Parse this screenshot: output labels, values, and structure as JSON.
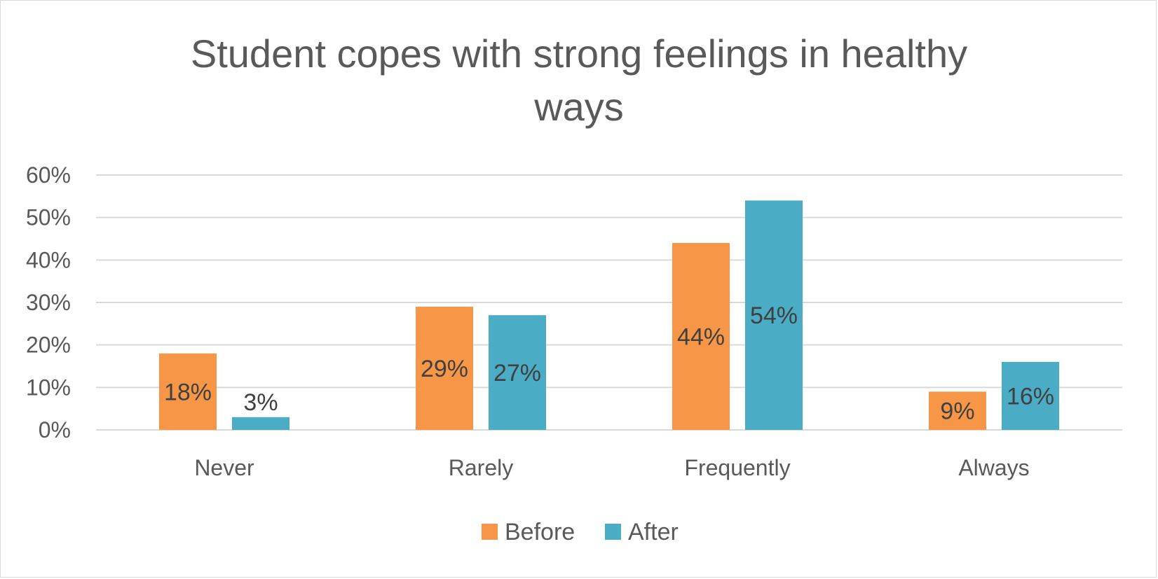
{
  "chart_data": {
    "type": "bar",
    "title_lines": [
      "Student copes with strong feelings in healthy",
      "ways"
    ],
    "categories": [
      "Never",
      "Rarely",
      "Frequently",
      "Always"
    ],
    "series": [
      {
        "name": "Before",
        "color": "#f79646",
        "values": [
          18,
          29,
          44,
          9
        ],
        "labels": [
          "18%",
          "29%",
          "44%",
          "9%"
        ]
      },
      {
        "name": "After",
        "color": "#4bacc6",
        "values": [
          3,
          27,
          54,
          16
        ],
        "labels": [
          "3%",
          "27%",
          "54%",
          "16%"
        ]
      }
    ],
    "ylim": [
      0,
      60
    ],
    "yticks": [
      0,
      10,
      20,
      30,
      40,
      50,
      60
    ],
    "ytick_labels": [
      "0%",
      "10%",
      "20%",
      "30%",
      "40%",
      "50%",
      "60%"
    ],
    "grid": true,
    "legend_position": "bottom",
    "gridline_color": "#d9d9d9"
  }
}
